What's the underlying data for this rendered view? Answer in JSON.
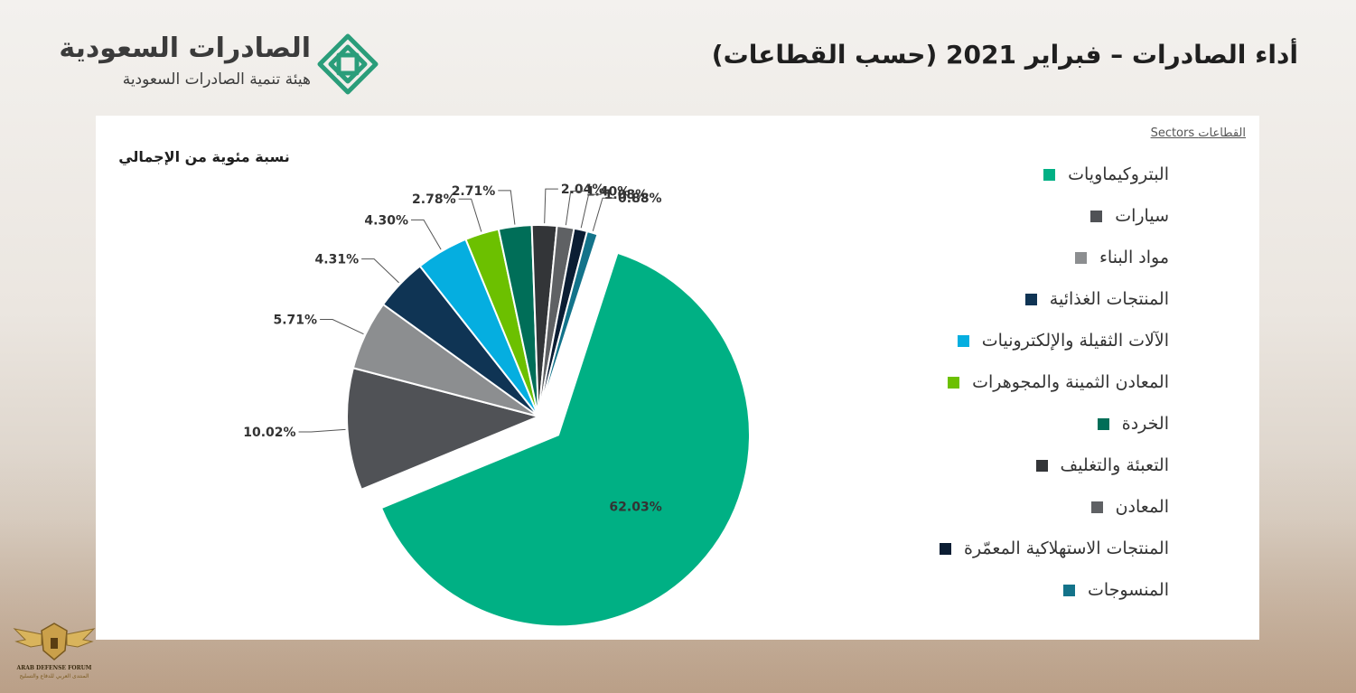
{
  "header": {
    "title": "أداء الصادرات – فبراير 2021 (حسب القطاعات)",
    "logo_title": "الصادرات السعودية",
    "logo_subtitle": "هيئة تنمية الصادرات السعودية"
  },
  "colors": {
    "brand_green": "#2a9d7a",
    "panel_bg": "#ffffff"
  },
  "watermark": {
    "line1": "ARAB DEFENSE FORUM",
    "line2": "المنتدى العربي للدفاع والتسليح"
  },
  "chart_data": {
    "type": "pie",
    "caption": "نسبة مئوية من الإجمالي",
    "legend_title": "Sectors القطاعات",
    "legend_position": "right",
    "slices": [
      {
        "label": "البتروكيماويات",
        "value": 62.03,
        "display": "62.03%",
        "color": "#00b084",
        "exploded": true
      },
      {
        "label": "سيارات",
        "value": 10.02,
        "display": "10.02%",
        "color": "#505256"
      },
      {
        "label": "مواد البناء",
        "value": 5.71,
        "display": "5.71%",
        "color": "#8c8e90"
      },
      {
        "label": "المنتجات الغذائية",
        "value": 4.31,
        "display": "4.31%",
        "color": "#0f3454"
      },
      {
        "label": "الآلات الثقيلة والإلكترونيات",
        "value": 4.3,
        "display": "4.30%",
        "color": "#05aee0"
      },
      {
        "label": "المعادن الثمينة والمجوهرات",
        "value": 2.78,
        "display": "2.78%",
        "color": "#6cc000"
      },
      {
        "label": "الخردة",
        "value": 2.71,
        "display": "2.71%",
        "color": "#006e58"
      },
      {
        "label": "التعبئة والتغليف",
        "value": 2.04,
        "display": "2.04%",
        "color": "#333538"
      },
      {
        "label": "المعادن",
        "value": 1.4,
        "display": "1.40%",
        "color": "#5f6164"
      },
      {
        "label": "المنتجات الاستهلاكية المعمّرة",
        "value": 1.08,
        "display": "1.08%",
        "color": "#0b1d33"
      },
      {
        "label": "المنسوجات",
        "value": 0.88,
        "display": "0.88%",
        "color": "#13738a"
      }
    ]
  }
}
